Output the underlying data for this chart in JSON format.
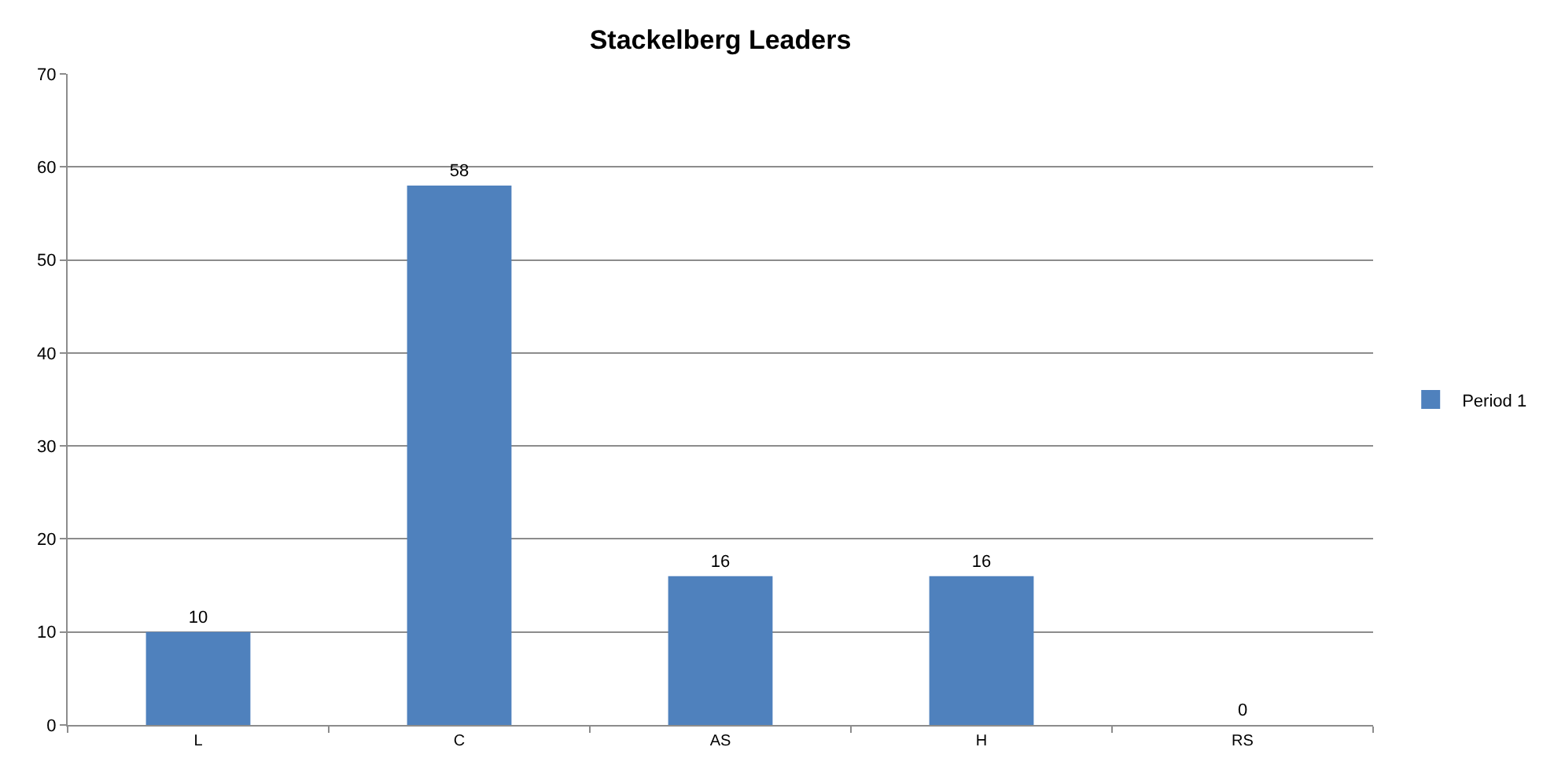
{
  "chart_data": {
    "type": "bar",
    "title": "Stackelberg Leaders",
    "categories": [
      "L",
      "C",
      "AS",
      "H",
      "RS"
    ],
    "series": [
      {
        "name": "Period 1",
        "color": "#4f81bd",
        "values": [
          10,
          58,
          16,
          16,
          0
        ]
      }
    ],
    "ylim": [
      0,
      70
    ],
    "yticks": [
      0,
      10,
      20,
      30,
      40,
      50,
      60,
      70
    ],
    "grid": "y",
    "legend": "right",
    "data_labels": true
  }
}
